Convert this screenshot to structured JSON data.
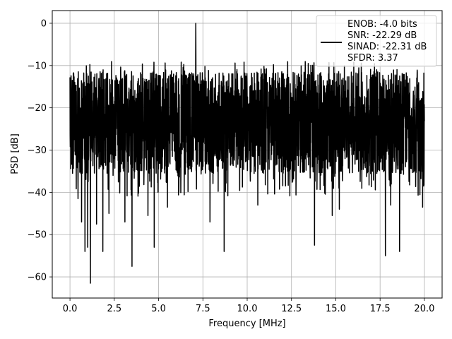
{
  "chart_data": {
    "type": "line",
    "xlabel": "Frequency [MHz]",
    "ylabel": "PSD [dB]",
    "xlim": [
      -1.0,
      21.0
    ],
    "ylim": [
      -65.0,
      3.0
    ],
    "xticks": [
      0.0,
      2.5,
      5.0,
      7.5,
      10.0,
      12.5,
      15.0,
      17.5,
      20.0
    ],
    "xtick_labels": [
      "0.0",
      "2.5",
      "5.0",
      "7.5",
      "10.0",
      "12.5",
      "15.0",
      "17.5",
      "20.0"
    ],
    "yticks": [
      0,
      -10,
      -20,
      -30,
      -40,
      -50,
      -60
    ],
    "ytick_labels": [
      "0",
      "−10",
      "−20",
      "−30",
      "−40",
      "−50",
      "−60"
    ],
    "grid": true,
    "legend_position": "top-right",
    "series": [
      {
        "color": "#000000",
        "description": "Noisy power spectral density; band roughly -35 to -12 dB, single peak at 0 dB near 7.1 MHz",
        "noise_floor_min": -35,
        "noise_floor_max": -12,
        "peak": {
          "x": 7.1,
          "y": 0.0
        },
        "deep_dips": [
          {
            "x": 0.45,
            "y": -41.5
          },
          {
            "x": 0.65,
            "y": -47.0
          },
          {
            "x": 0.85,
            "y": -54.0
          },
          {
            "x": 1.0,
            "y": -53.0
          },
          {
            "x": 1.15,
            "y": -61.5
          },
          {
            "x": 1.5,
            "y": -47.5
          },
          {
            "x": 1.85,
            "y": -54.0
          },
          {
            "x": 2.2,
            "y": -45.0
          },
          {
            "x": 3.1,
            "y": -47.0
          },
          {
            "x": 3.5,
            "y": -57.5
          },
          {
            "x": 4.4,
            "y": -45.5
          },
          {
            "x": 4.75,
            "y": -53.0
          },
          {
            "x": 5.5,
            "y": -43.5
          },
          {
            "x": 7.9,
            "y": -47.0
          },
          {
            "x": 8.7,
            "y": -54.0
          },
          {
            "x": 10.6,
            "y": -43.0
          },
          {
            "x": 13.8,
            "y": -52.5
          },
          {
            "x": 14.8,
            "y": -45.5
          },
          {
            "x": 15.2,
            "y": -44.0
          },
          {
            "x": 17.8,
            "y": -55.0
          },
          {
            "x": 18.1,
            "y": -43.0
          },
          {
            "x": 18.6,
            "y": -54.0
          },
          {
            "x": 19.9,
            "y": -43.5
          }
        ]
      }
    ],
    "legend": [
      "ENOB: -4.0 bits",
      "SNR: -22.29 dB",
      "SINAD: -22.31 dB",
      "SFDR: 3.37"
    ]
  }
}
